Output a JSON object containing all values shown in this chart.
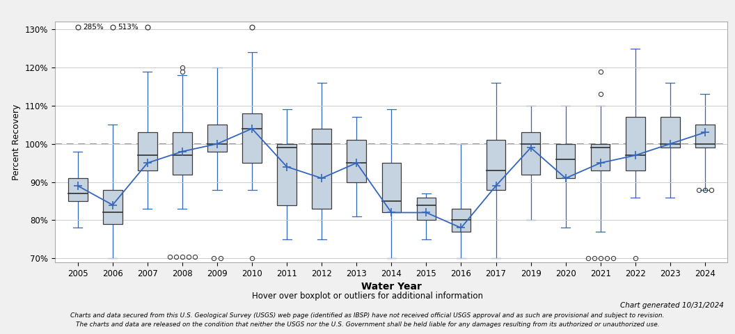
{
  "years": [
    2005,
    2006,
    2007,
    2008,
    2009,
    2010,
    2011,
    2012,
    2013,
    2014,
    2015,
    2016,
    2017,
    2019,
    2020,
    2021,
    2022,
    2023,
    2024
  ],
  "boxes": [
    {
      "year": 2005,
      "q1": 85,
      "q2": 87,
      "q3": 91,
      "mean": 89,
      "whislo": 78,
      "whishi": 98
    },
    {
      "year": 2006,
      "q1": 79,
      "q2": 82,
      "q3": 88,
      "mean": 84,
      "whislo": 70,
      "whishi": 105
    },
    {
      "year": 2007,
      "q1": 93,
      "q2": 97,
      "q3": 103,
      "mean": 95,
      "whislo": 83,
      "whishi": 119
    },
    {
      "year": 2008,
      "q1": 92,
      "q2": 97,
      "q3": 103,
      "mean": 98,
      "whislo": 83,
      "whishi": 118
    },
    {
      "year": 2009,
      "q1": 98,
      "q2": 100,
      "q3": 105,
      "mean": 100,
      "whislo": 88,
      "whishi": 120
    },
    {
      "year": 2010,
      "q1": 95,
      "q2": 104,
      "q3": 108,
      "mean": 104,
      "whislo": 88,
      "whishi": 124
    },
    {
      "year": 2011,
      "q1": 84,
      "q2": 99,
      "q3": 100,
      "mean": 94,
      "whislo": 75,
      "whishi": 109
    },
    {
      "year": 2012,
      "q1": 83,
      "q2": 100,
      "q3": 104,
      "mean": 91,
      "whislo": 75,
      "whishi": 116
    },
    {
      "year": 2013,
      "q1": 90,
      "q2": 95,
      "q3": 101,
      "mean": 95,
      "whislo": 81,
      "whishi": 107
    },
    {
      "year": 2014,
      "q1": 82,
      "q2": 85,
      "q3": 95,
      "mean": 82,
      "whislo": 70,
      "whishi": 109
    },
    {
      "year": 2015,
      "q1": 80,
      "q2": 84,
      "q3": 86,
      "mean": 82,
      "whislo": 75,
      "whishi": 87
    },
    {
      "year": 2016,
      "q1": 77,
      "q2": 80,
      "q3": 83,
      "mean": 78,
      "whislo": 70,
      "whishi": 100
    },
    {
      "year": 2017,
      "q1": 88,
      "q2": 93,
      "q3": 101,
      "mean": 89,
      "whislo": 70,
      "whishi": 116
    },
    {
      "year": 2019,
      "q1": 92,
      "q2": 100,
      "q3": 103,
      "mean": 99,
      "whislo": 80,
      "whishi": 110
    },
    {
      "year": 2020,
      "q1": 91,
      "q2": 96,
      "q3": 100,
      "mean": 91,
      "whislo": 78,
      "whishi": 110
    },
    {
      "year": 2021,
      "q1": 93,
      "q2": 99,
      "q3": 100,
      "mean": 95,
      "whislo": 77,
      "whishi": 110
    },
    {
      "year": 2022,
      "q1": 93,
      "q2": 97,
      "q3": 107,
      "mean": 97,
      "whislo": 86,
      "whishi": 125
    },
    {
      "year": 2023,
      "q1": 99,
      "q2": 100,
      "q3": 107,
      "mean": 100,
      "whislo": 86,
      "whishi": 116
    },
    {
      "year": 2024,
      "q1": 99,
      "q2": 100,
      "q3": 105,
      "mean": 103,
      "whislo": 88,
      "whishi": 113
    }
  ],
  "outliers": [
    {
      "year": 2008,
      "values": [
        70.5,
        70.5,
        70.5,
        70.5,
        70.5
      ]
    },
    {
      "year": 2009,
      "values": [
        70,
        70
      ]
    },
    {
      "year": 2010,
      "values": [
        70
      ]
    },
    {
      "year": 2021,
      "values": [
        70,
        70,
        70,
        70,
        70
      ]
    },
    {
      "year": 2022,
      "values": [
        70
      ]
    },
    {
      "year": 2024,
      "values": [
        88,
        88,
        88
      ]
    }
  ],
  "top_outliers": [
    {
      "year": 2008,
      "values": [
        119,
        120
      ]
    },
    {
      "year": 2021,
      "values": [
        119,
        113
      ]
    }
  ],
  "extreme_outlier_circle_years": [
    2005,
    2006,
    2007,
    2010
  ],
  "extreme_outlier_labels": [
    {
      "year": 2005,
      "label": "285%"
    },
    {
      "year": 2006,
      "label": "513%"
    }
  ],
  "mean_line_years": [
    2005,
    2006,
    2007,
    2008,
    2009,
    2010,
    2011,
    2012,
    2013,
    2014,
    2015,
    2016,
    2017,
    2019,
    2020,
    2021,
    2022,
    2023,
    2024
  ],
  "mean_line_y": [
    89,
    84,
    95,
    98,
    100,
    104,
    94,
    91,
    95,
    82,
    82,
    78,
    89,
    99,
    91,
    95,
    97,
    100,
    103
  ],
  "reference_line_y": 100,
  "ylim": [
    69,
    132
  ],
  "yticks": [
    70,
    80,
    90,
    100,
    110,
    120,
    130
  ],
  "ytick_labels": [
    "70%",
    "80%",
    "90%",
    "100%",
    "110%",
    "120%",
    "130%"
  ],
  "xlabel": "Water Year",
  "ylabel": "Percent Recovery",
  "box_facecolor": "#c5d3e0",
  "box_edgecolor": "#3a3a3a",
  "whisker_color": "#3366bb",
  "median_color": "#3a3a3a",
  "mean_color": "#3366bb",
  "line_color": "#3366bb",
  "outlier_edgecolor": "#3a3a3a",
  "extreme_outlier_edgecolor": "#3a3a3a",
  "ref_line_color": "#888888",
  "bg_color": "#f0f0f0",
  "plot_bg_color": "#ffffff",
  "subtitle": "Hover over boxplot or outliers for additional information",
  "chart_gen_text": "Chart generated 10/31/2024",
  "footer1": "Charts and data secured from this U.S. Geological Survey (USGS) web page (identified as IBSP) have not received official USGS approval and as such are provisional and subject to revision.",
  "footer2": "The charts and data are released on the condition that neither the USGS nor the U.S. Government shall be held liable for any damages resulting from its authorized or unauthorized use."
}
